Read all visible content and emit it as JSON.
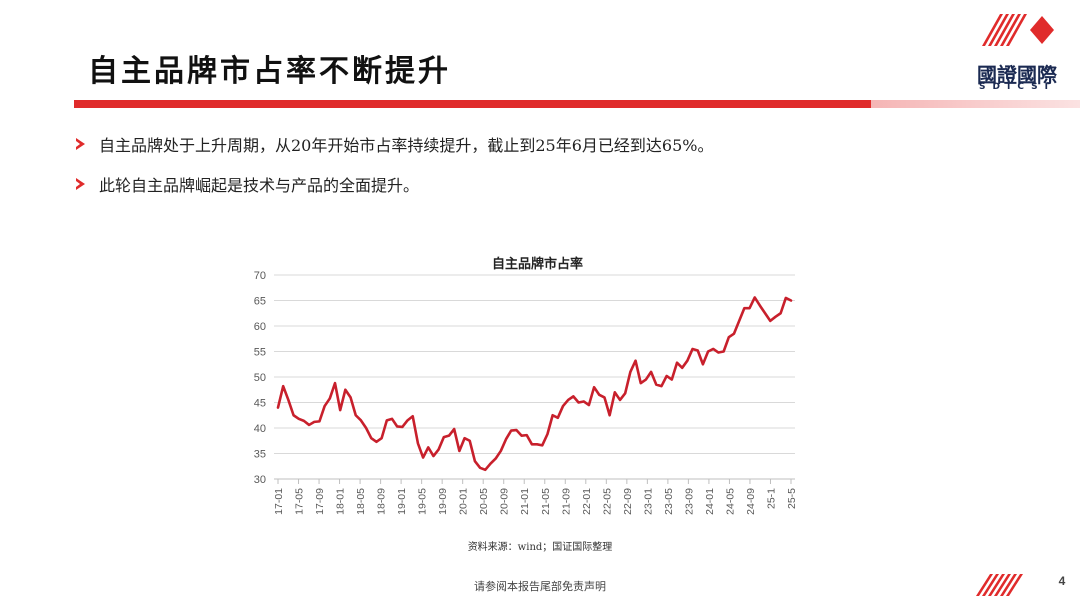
{
  "slide": {
    "title": "自主品牌市占率不断提升",
    "page_number": "4",
    "footer": "请参阅本报告尾部免责声明",
    "source": "资料来源：wind；国证国际整理"
  },
  "logo": {
    "cn": "國證國際",
    "en": "SDICSI"
  },
  "bullets": [
    {
      "text": "自主品牌处于上升周期，从20年开始市占率持续提升，截止到25年6月已经到达65%。"
    },
    {
      "text": "此轮自主品牌崛起是技术与产品的全面提升。"
    }
  ],
  "colors": {
    "accent": "#e02b2b",
    "series": "#c8202c",
    "logo_navy": "#1b2a52"
  },
  "chart_data": {
    "type": "line",
    "title": "自主品牌市占率",
    "xlabel": "",
    "ylabel": "",
    "ylim": [
      30,
      70
    ],
    "yticks": [
      30,
      35,
      40,
      45,
      50,
      55,
      60,
      65,
      70
    ],
    "grid": true,
    "legend": "none",
    "x_tick_labels": [
      "17-01",
      "17-05",
      "17-09",
      "18-01",
      "18-05",
      "18-09",
      "19-01",
      "19-05",
      "19-09",
      "20-01",
      "20-05",
      "20-09",
      "21-01",
      "21-05",
      "21-09",
      "22-01",
      "22-05",
      "22-09",
      "23-01",
      "23-05",
      "23-09",
      "24-01",
      "24-05",
      "24-09",
      "25-1",
      "25-5"
    ],
    "series": [
      {
        "values": [
          44.0,
          48.2,
          45.5,
          42.5,
          41.8,
          41.4,
          40.6,
          41.2,
          41.3,
          44.3,
          45.8,
          48.8,
          43.5,
          47.5,
          46.0,
          42.5,
          41.5,
          40.0,
          38.0,
          37.3,
          38.0,
          41.5,
          41.8,
          40.3,
          40.2,
          41.5,
          42.3,
          37.0,
          34.2,
          36.2,
          34.5,
          35.8,
          38.2,
          38.5,
          39.8,
          35.5,
          38.0,
          37.5,
          33.5,
          32.2,
          31.8,
          33.0,
          34.0,
          35.5,
          37.8,
          39.5,
          39.6,
          38.5,
          38.6,
          36.8,
          36.8,
          36.6,
          38.8,
          42.5,
          42.0,
          44.3,
          45.5,
          46.2,
          45.0,
          45.2,
          44.5,
          48.0,
          46.5,
          46.0,
          42.5,
          47.0,
          45.5,
          46.8,
          51.0,
          53.2,
          48.8,
          49.5,
          51.0,
          48.5,
          48.2,
          50.2,
          49.5,
          52.8,
          51.8,
          53.2,
          55.5,
          55.2,
          52.5,
          55.0,
          55.5,
          54.8,
          55.0,
          57.8,
          58.5,
          61.0,
          63.5,
          63.5,
          65.6,
          64.0,
          62.5,
          61.0,
          61.8,
          62.5,
          65.5,
          65.0
        ]
      }
    ]
  }
}
